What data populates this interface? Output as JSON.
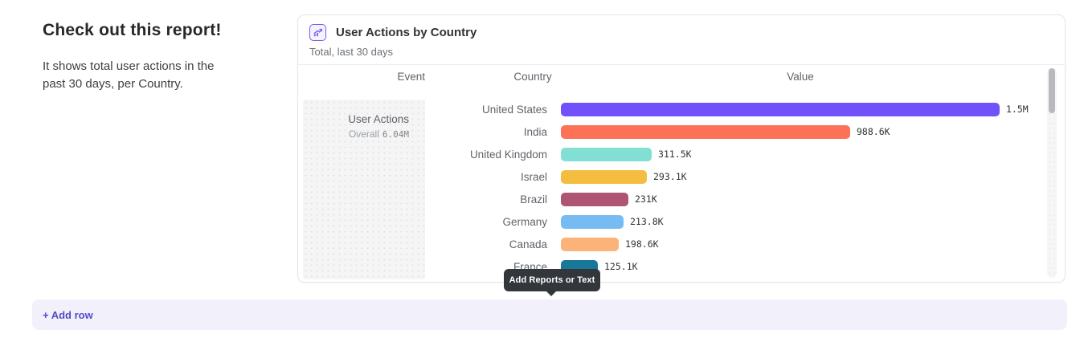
{
  "page": {
    "heading": "Check out this report!",
    "description": "It shows total user actions in the past 30 days, per Country."
  },
  "report_card": {
    "icon": "line-chart-icon",
    "title": "User Actions by Country",
    "subtitle": "Total, last 30 days",
    "columns": {
      "event": "Event",
      "country": "Country",
      "value": "Value"
    },
    "event_cell": {
      "name": "User Actions",
      "overall_label": "Overall",
      "overall_value": "6.04M"
    }
  },
  "chart_data": {
    "type": "bar",
    "orientation": "horizontal",
    "title": "User Actions by Country",
    "subtitle": "Total, last 30 days",
    "event": "User Actions",
    "overall_total": "6.04M",
    "categories": [
      "United States",
      "India",
      "United Kingdom",
      "Israel",
      "Brazil",
      "Germany",
      "Canada",
      "France"
    ],
    "values": [
      1500000,
      988600,
      311500,
      293100,
      231000,
      213800,
      198600,
      125100
    ],
    "value_labels": [
      "1.5M",
      "988.6K",
      "311.5K",
      "293.1K",
      "231K",
      "213.8K",
      "198.6K",
      "125.1K"
    ],
    "bar_colors": [
      "#7051fa",
      "#fd7157",
      "#82dfd3",
      "#f5bd40",
      "#ae5573",
      "#76bcf2",
      "#fbb37a",
      "#19789a"
    ],
    "xlim": [
      0,
      1500000
    ],
    "grid": false,
    "legend": false
  },
  "tooltip": {
    "label": "Add Reports or Text"
  },
  "footer": {
    "add_row_label": "+ Add row"
  },
  "colors": {
    "accent": "#5349c8",
    "tooltip_bg": "#33373b",
    "add_row_bg": "#f2f1fb",
    "icon_purple": "#7a5cf0"
  }
}
